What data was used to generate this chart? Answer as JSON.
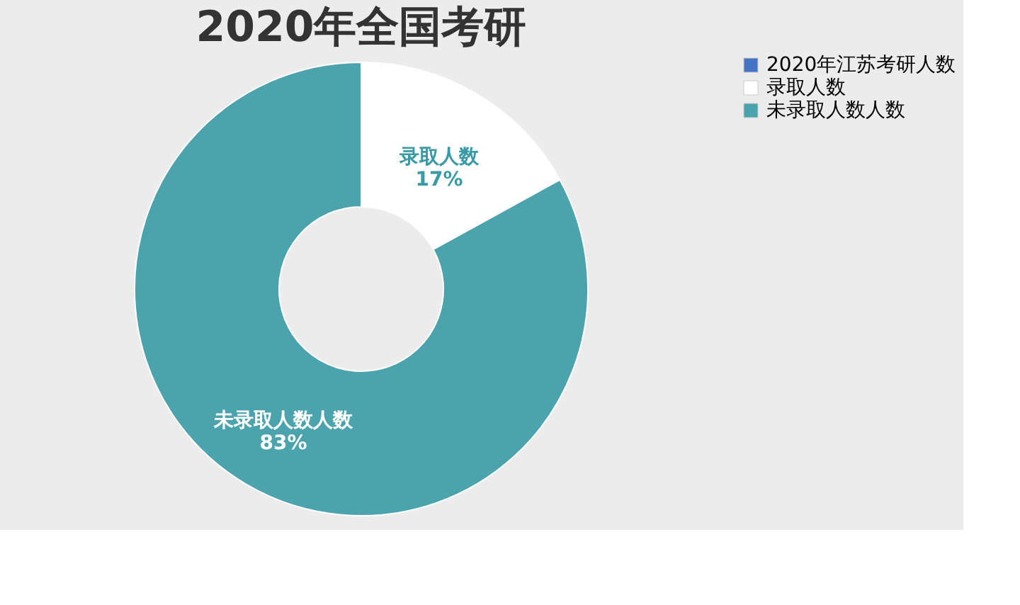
{
  "chart_data": {
    "type": "donut",
    "title": "2020年全国考研",
    "categories": [
      "2020年江苏考研人数",
      "录取人数",
      "未录取人数人数"
    ],
    "values": [
      0,
      17,
      83
    ],
    "colors": [
      "#4472c4",
      "#ffffff",
      "#4aa3ad"
    ],
    "value_labels": [
      null,
      "17%",
      "83%"
    ],
    "legend": "right"
  }
}
